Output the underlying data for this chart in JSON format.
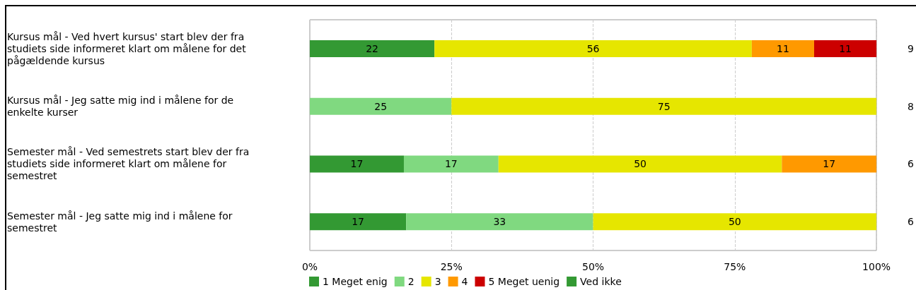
{
  "chart_data": {
    "type": "bar",
    "orientation": "horizontal",
    "stacked": true,
    "categories": [
      "Kursus mål - Ved hvert kursus' start blev der fra studiets side informeret klart om målene for det pågældende kursus",
      "Kursus mål - Jeg satte mig ind i målene for de enkelte kurser",
      "Semester mål - Ved semestrets start blev der fra studiets side informeret klart om målene for semestret",
      "Semester mål - Jeg satte mig ind i målene for semestret"
    ],
    "series": [
      {
        "name": "1 Meget enig",
        "color": "#339933",
        "values": [
          22,
          0,
          16.6,
          17
        ],
        "value_labels": [
          "22",
          null,
          "17",
          "17"
        ]
      },
      {
        "name": "2",
        "color": "#80d980",
        "values": [
          0,
          25,
          16.7,
          33
        ],
        "value_labels": [
          null,
          "25",
          "17",
          "33"
        ]
      },
      {
        "name": "3",
        "color": "#e6e600",
        "values": [
          56,
          75,
          50,
          50
        ],
        "value_labels": [
          "56",
          "75",
          "50",
          "50"
        ]
      },
      {
        "name": "4",
        "color": "#ff9900",
        "values": [
          11,
          0,
          16.7,
          0
        ],
        "value_labels": [
          "11",
          null,
          "17",
          null
        ]
      },
      {
        "name": "5 Meget uenig",
        "color": "#cc0000",
        "values": [
          11,
          0,
          0,
          0
        ],
        "value_labels": [
          "11",
          null,
          null,
          null
        ]
      },
      {
        "name": "Ved ikke",
        "color": "#339933",
        "values": [
          0,
          0,
          0,
          0
        ],
        "value_labels": [
          null,
          null,
          null,
          null
        ]
      }
    ],
    "xlim": [
      0,
      100
    ],
    "xticks": [
      {
        "value": 0,
        "label": "0%"
      },
      {
        "value": 25,
        "label": "25%"
      },
      {
        "value": 50,
        "label": "50%"
      },
      {
        "value": 75,
        "label": "75%"
      },
      {
        "value": 100,
        "label": "100%"
      }
    ],
    "grid": "x",
    "legend": "bottom",
    "annotations": [
      "9",
      "8",
      "6",
      "6"
    ]
  }
}
